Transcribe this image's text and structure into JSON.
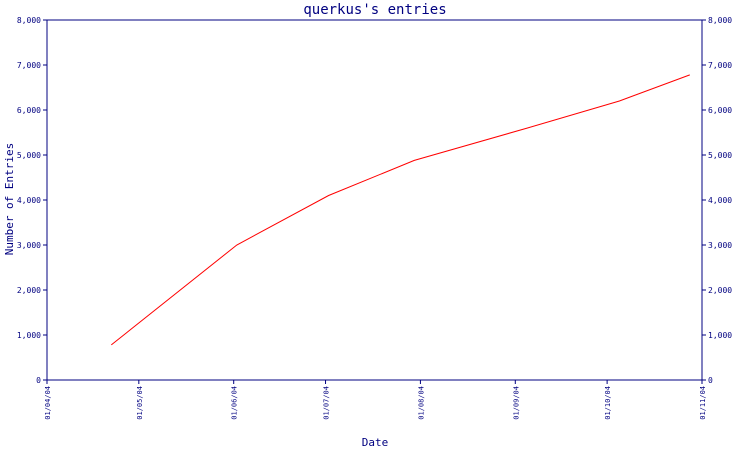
{
  "chart_data": {
    "type": "line",
    "title": "querkus's entries",
    "xlabel": "Date",
    "ylabel": "Number of Entries",
    "x_ticks": [
      "01/04/04",
      "01/05/04",
      "01/06/04",
      "01/07/04",
      "01/08/04",
      "01/09/04",
      "01/10/04",
      "01/11/04"
    ],
    "y_ticks": [
      "0",
      "1,000",
      "2,000",
      "3,000",
      "4,000",
      "5,000",
      "6,000",
      "7,000",
      "8,000"
    ],
    "ylim": [
      0,
      8000
    ],
    "xlim": [
      "2004-04-01",
      "2004-11-01"
    ],
    "x_scale": "date",
    "grid": false,
    "series": [
      {
        "color": "#ff0000",
        "points": [
          {
            "x": "2004-04-22",
            "y": 780
          },
          {
            "x": "2004-06-02",
            "y": 3000
          },
          {
            "x": "2004-07-02",
            "y": 4100
          },
          {
            "x": "2004-07-30",
            "y": 4880
          },
          {
            "x": "2004-09-05",
            "y": 5600
          },
          {
            "x": "2004-10-05",
            "y": 6200
          },
          {
            "x": "2004-10-28",
            "y": 6780
          }
        ]
      }
    ]
  },
  "colors": {
    "axis": "#000080",
    "line": "#ff0000",
    "background": "#ffffff"
  }
}
